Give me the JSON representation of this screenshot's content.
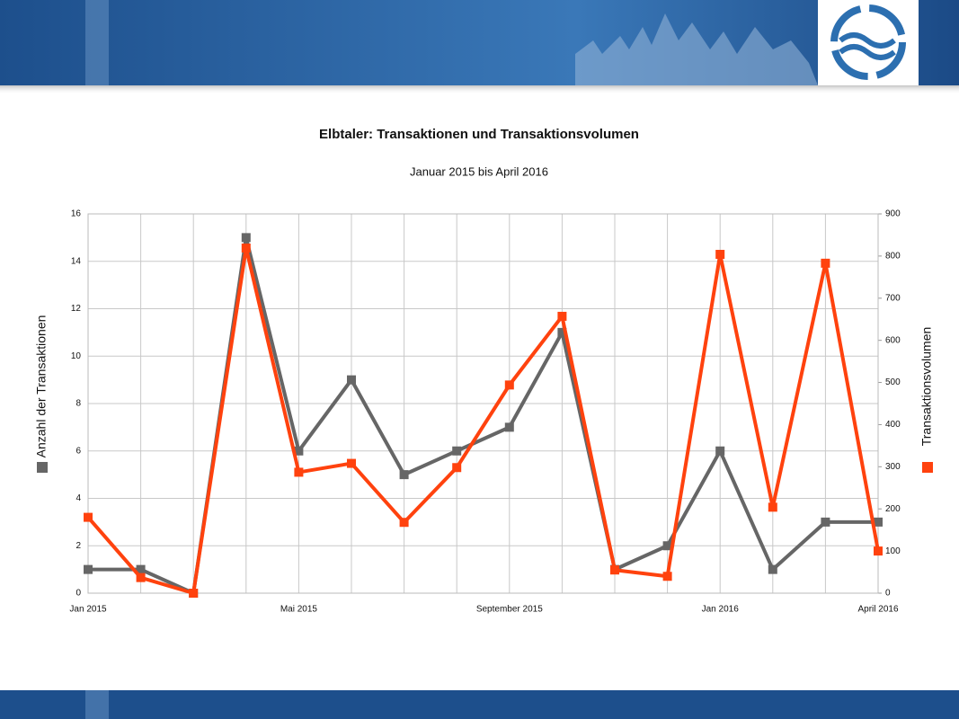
{
  "chart_data": {
    "type": "line",
    "title": "Elbtaler: Transaktionen und Transaktionsvolumen",
    "subtitle": "Januar 2015 bis April 2016",
    "categories": [
      "Jan 2015",
      null,
      null,
      null,
      "Mai 2015",
      null,
      null,
      null,
      "September 2015",
      null,
      null,
      null,
      "Jan 2016",
      null,
      null,
      "April 2016"
    ],
    "series": [
      {
        "name": "Anzahl der Transaktionen",
        "color": "#666666",
        "values": [
          1,
          1,
          0,
          15,
          6,
          9,
          5,
          6,
          7,
          11,
          1,
          2,
          6,
          1,
          3,
          3
        ]
      },
      {
        "name": "Transaktionsvolumen",
        "color": "#ff420e",
        "axis": "y2",
        "values": [
          180,
          37,
          0,
          819,
          287,
          308,
          168,
          298,
          494,
          657,
          55,
          40,
          804,
          204,
          783,
          100
        ]
      }
    ],
    "ylim": [
      0,
      16
    ],
    "yticks": [
      0,
      2,
      4,
      6,
      8,
      10,
      12,
      14,
      16
    ],
    "y2lim": [
      0,
      900
    ],
    "y2ticks": [
      0,
      100,
      200,
      300,
      400,
      500,
      600,
      700,
      800,
      900
    ],
    "grid": true
  }
}
